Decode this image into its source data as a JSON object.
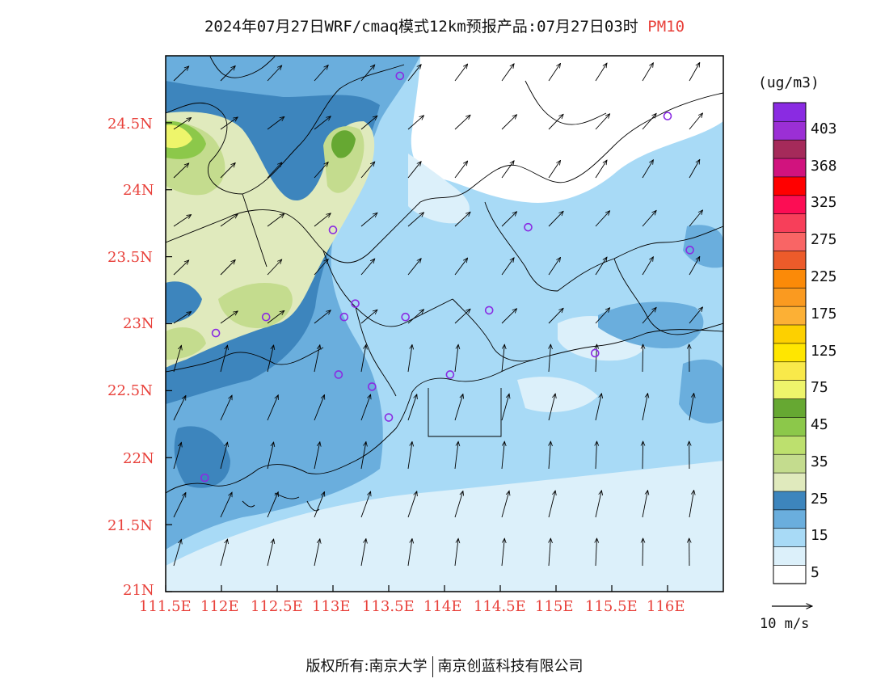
{
  "title": {
    "main": "2024年07月27日WRF/cmaq模式12km预报产品:07月27日03时",
    "variable": "PM10"
  },
  "map": {
    "lat_labels": [
      "24.5N",
      "24N",
      "23.5N",
      "23N",
      "22.5N",
      "22N",
      "21.5N",
      "21N"
    ],
    "lon_labels": [
      "111.5E",
      "112E",
      "112.5E",
      "113E",
      "113.5E",
      "114E",
      "114.5E",
      "115E",
      "115.5E",
      "116E"
    ],
    "lat_range": [
      21.0,
      25.0
    ],
    "lon_range": [
      111.5,
      116.5
    ],
    "station_color": "#8a2be2",
    "stations": [
      {
        "lon": 113.6,
        "lat": 24.85
      },
      {
        "lon": 116.0,
        "lat": 24.55
      },
      {
        "lon": 113.0,
        "lat": 23.7
      },
      {
        "lon": 114.75,
        "lat": 23.72
      },
      {
        "lon": 116.2,
        "lat": 23.55
      },
      {
        "lon": 112.4,
        "lat": 23.05
      },
      {
        "lon": 111.95,
        "lat": 22.93
      },
      {
        "lon": 113.1,
        "lat": 23.05
      },
      {
        "lon": 113.2,
        "lat": 23.15
      },
      {
        "lon": 113.65,
        "lat": 23.05
      },
      {
        "lon": 114.4,
        "lat": 23.1
      },
      {
        "lon": 115.35,
        "lat": 22.78
      },
      {
        "lon": 113.05,
        "lat": 22.62
      },
      {
        "lon": 113.35,
        "lat": 22.53
      },
      {
        "lon": 114.05,
        "lat": 22.62
      },
      {
        "lon": 113.5,
        "lat": 22.3
      },
      {
        "lon": 111.85,
        "lat": 21.85
      }
    ]
  },
  "colorbar": {
    "unit": "(ug/m3)",
    "levels": [
      {
        "color": "#ffffff",
        "label": "5"
      },
      {
        "color": "#dcf0fa",
        "label": ""
      },
      {
        "color": "#a8daf6",
        "label": "15"
      },
      {
        "color": "#6aaedd",
        "label": ""
      },
      {
        "color": "#3d85bd",
        "label": "25"
      },
      {
        "color": "#e0eabd",
        "label": ""
      },
      {
        "color": "#c4dc8e",
        "label": "35"
      },
      {
        "color": "#bde06e",
        "label": ""
      },
      {
        "color": "#8cc84a",
        "label": "45"
      },
      {
        "color": "#66a832",
        "label": ""
      },
      {
        "color": "#eef56b",
        "label": "75"
      },
      {
        "color": "#f9e94a",
        "label": ""
      },
      {
        "color": "#ffe600",
        "label": "125"
      },
      {
        "color": "#fdd000",
        "label": ""
      },
      {
        "color": "#fcb035",
        "label": "175"
      },
      {
        "color": "#fa9a20",
        "label": ""
      },
      {
        "color": "#fb8a08",
        "label": "225"
      },
      {
        "color": "#ec5b2a",
        "label": ""
      },
      {
        "color": "#f96565",
        "label": "275"
      },
      {
        "color": "#f73f5a",
        "label": ""
      },
      {
        "color": "#fc0d54",
        "label": "325"
      },
      {
        "color": "#ff0000",
        "label": ""
      },
      {
        "color": "#d1137e",
        "label": "368"
      },
      {
        "color": "#a52a5a",
        "label": ""
      },
      {
        "color": "#9b2fd5",
        "label": "403"
      },
      {
        "color": "#8a2be2",
        "label": ""
      }
    ]
  },
  "reference_vector": {
    "label": "10 m/s"
  },
  "footer": {
    "left": "版权所有:南京大学",
    "right": "南京创蓝科技有限公司"
  }
}
